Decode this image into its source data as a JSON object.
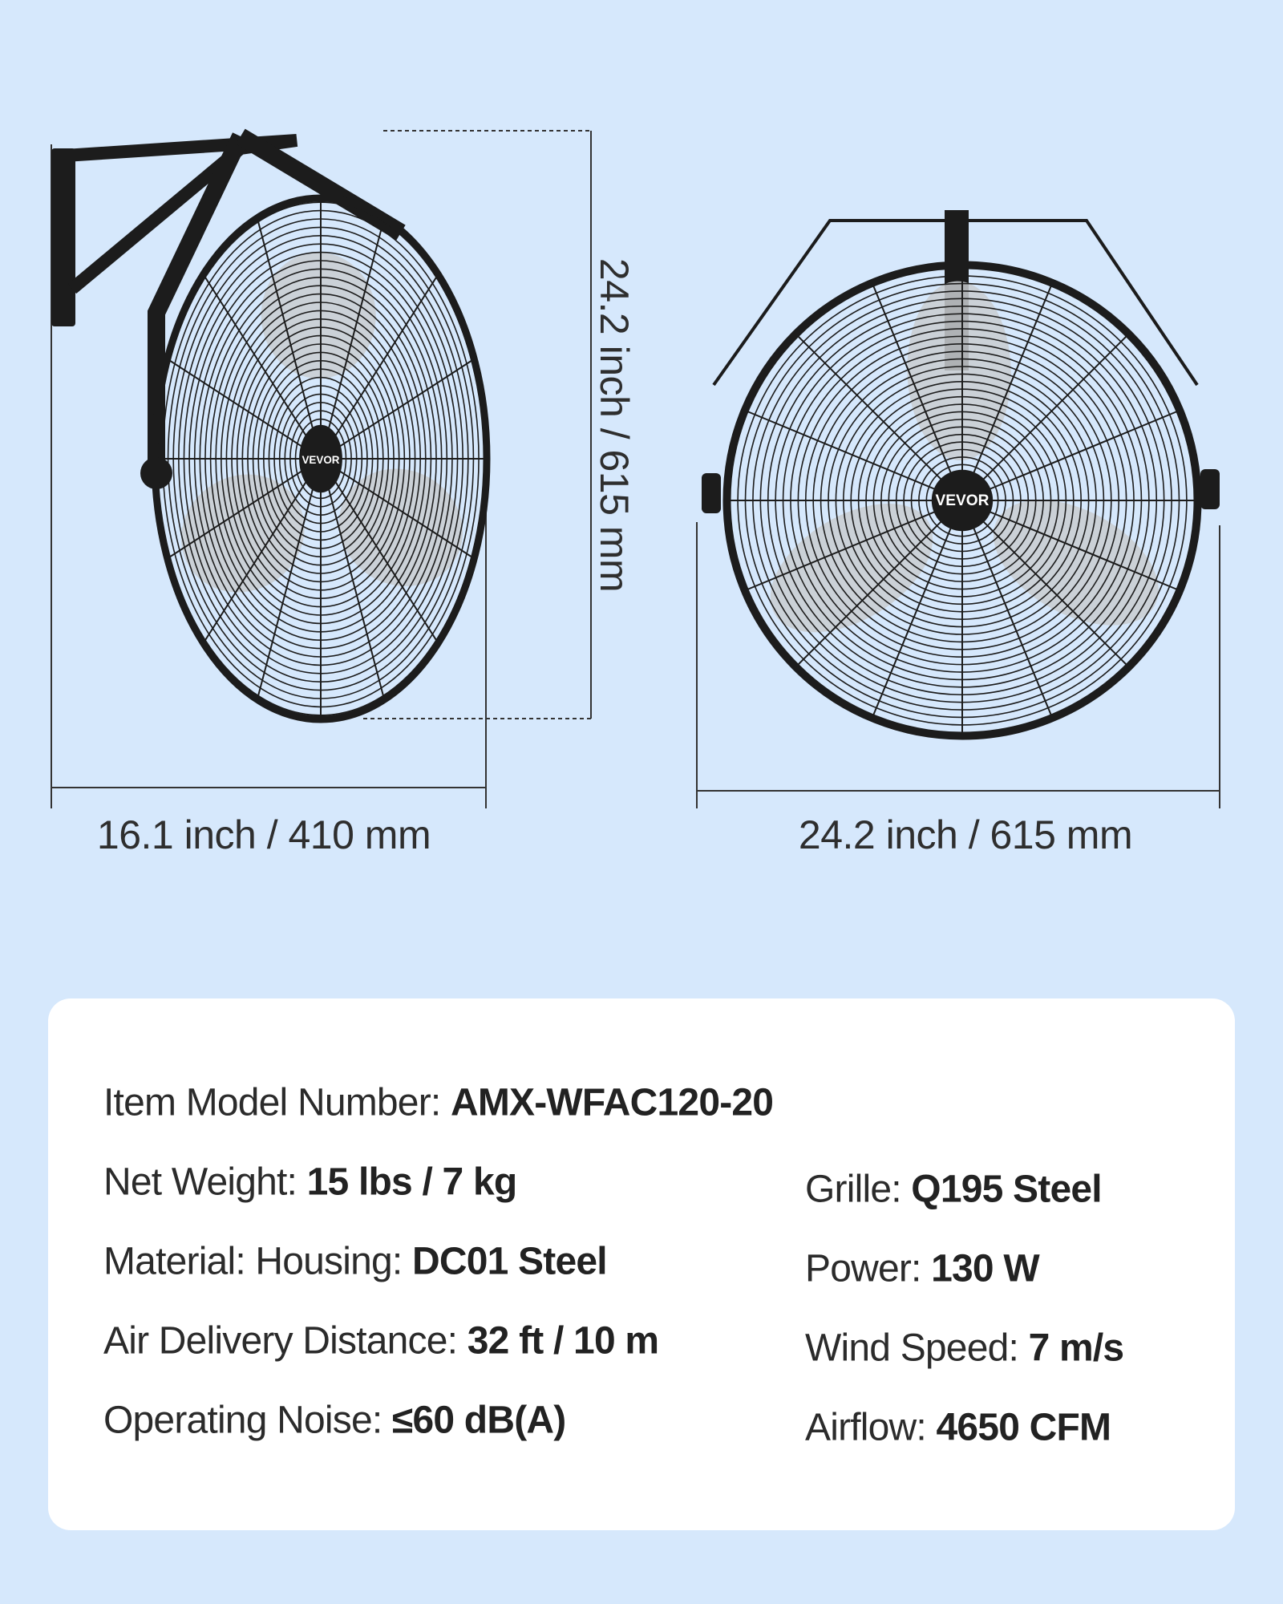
{
  "colors": {
    "background": "#d6e8fc",
    "card": "#ffffff",
    "fan": "#1c1c1c",
    "blade": "#c9ccd0"
  },
  "brand_logo": "VEVOR",
  "dimensions": {
    "side_depth": "16.1 inch / 410 mm",
    "front_width": "24.2 inch / 615 mm",
    "height": "24.2 inch / 615 mm"
  },
  "specs": {
    "left": [
      {
        "label": "Item Model Number:",
        "value": "AMX-WFAC120-20"
      },
      {
        "label": "Net Weight:",
        "value": "15 lbs / 7 kg"
      },
      {
        "label": "Material: Housing:",
        "value": "DC01 Steel"
      },
      {
        "label": "Air Delivery Distance:",
        "value": "32 ft / 10 m"
      },
      {
        "label": "Operating Noise:",
        "value": "≤60 dB(A)"
      }
    ],
    "right": [
      {
        "label": "Grille:",
        "value": "Q195 Steel"
      },
      {
        "label": "Power:",
        "value": "130 W"
      },
      {
        "label": "Wind Speed:",
        "value": "7 m/s"
      },
      {
        "label": "Airflow:",
        "value": "4650 CFM"
      }
    ]
  }
}
